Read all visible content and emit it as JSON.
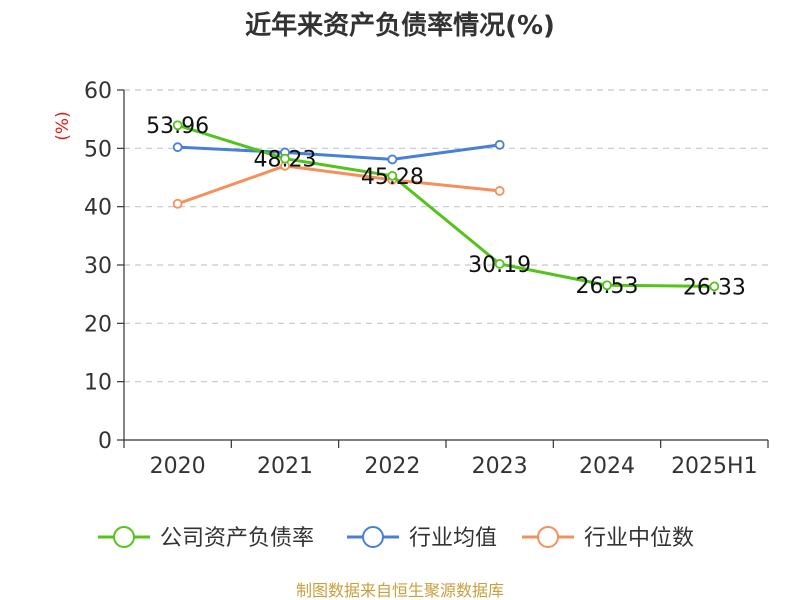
{
  "chart_data": {
    "type": "line",
    "title": "近年来资产负债率情况(%)",
    "ylabel": "(%)",
    "xlabel": "",
    "categories": [
      "2020",
      "2021",
      "2022",
      "2023",
      "2024",
      "2025H1"
    ],
    "ylim": [
      0,
      60
    ],
    "yticks": [
      0,
      10,
      20,
      30,
      40,
      50,
      60
    ],
    "grid": true,
    "legend_position": "bottom",
    "series": [
      {
        "name": "公司资产负债率",
        "color": "#52c41a",
        "values": [
          53.96,
          48.23,
          45.28,
          30.19,
          26.53,
          26.33
        ],
        "labels": [
          "53.96",
          "48.23",
          "45.28",
          "30.19",
          "26.53",
          "26.33"
        ]
      },
      {
        "name": "行业均值",
        "color": "#4a7fd6",
        "values": [
          50.2,
          49.3,
          48.1,
          50.6,
          null,
          null
        ]
      },
      {
        "name": "行业中位数",
        "color": "#f5905a",
        "values": [
          40.5,
          47.0,
          44.6,
          42.7,
          null,
          null
        ]
      }
    ],
    "source": "制图数据来自恒生聚源数据库"
  }
}
